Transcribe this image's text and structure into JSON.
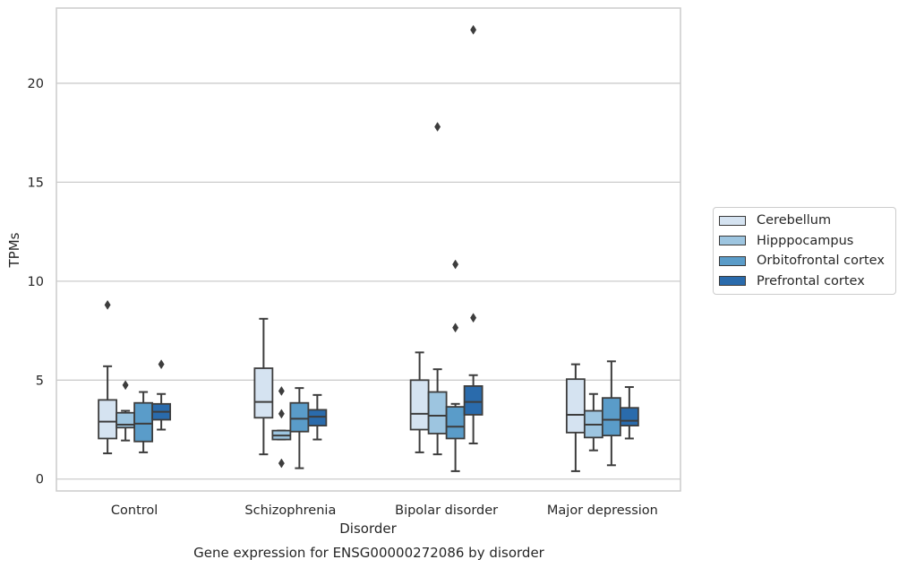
{
  "chart_data": {
    "type": "box",
    "title": "Gene expression for ENSG00000272086 by disorder",
    "xlabel": "Disorder",
    "ylabel": "TPMs",
    "ylim": [
      -0.6,
      23.8
    ],
    "yticks": [
      0,
      5,
      10,
      15,
      20
    ],
    "categories": [
      "Control",
      "Schizophrenia",
      "Bipolar disorder",
      "Major depression"
    ],
    "grid": "horizontal",
    "legend_position": "right",
    "series": [
      {
        "name": "Cerebellum",
        "color": "#d5e3f1",
        "boxes": [
          {
            "whisker_low": 1.3,
            "q1": 2.05,
            "median": 2.9,
            "q3": 4.0,
            "whisker_high": 5.7,
            "outliers": [
              8.8
            ]
          },
          {
            "whisker_low": 1.25,
            "q1": 3.1,
            "median": 3.9,
            "q3": 5.6,
            "whisker_high": 8.1,
            "outliers": []
          },
          {
            "whisker_low": 1.35,
            "q1": 2.5,
            "median": 3.3,
            "q3": 5.0,
            "whisker_high": 6.4,
            "outliers": []
          },
          {
            "whisker_low": 0.4,
            "q1": 2.35,
            "median": 3.25,
            "q3": 5.05,
            "whisker_high": 5.8,
            "outliers": []
          }
        ]
      },
      {
        "name": "Hipppocampus",
        "color": "#9dc5e0",
        "boxes": [
          {
            "whisker_low": 1.95,
            "q1": 2.6,
            "median": 2.75,
            "q3": 3.35,
            "whisker_high": 3.45,
            "outliers": [
              4.75
            ]
          },
          {
            "whisker_low": 2.0,
            "q1": 2.0,
            "median": 2.2,
            "q3": 2.45,
            "whisker_high": 2.45,
            "outliers": [
              4.45,
              3.3,
              0.8
            ]
          },
          {
            "whisker_low": 1.25,
            "q1": 2.3,
            "median": 3.2,
            "q3": 4.4,
            "whisker_high": 5.55,
            "outliers": [
              17.8
            ]
          },
          {
            "whisker_low": 1.45,
            "q1": 2.1,
            "median": 2.75,
            "q3": 3.45,
            "whisker_high": 4.3,
            "outliers": []
          }
        ]
      },
      {
        "name": "Orbitofrontal cortex",
        "color": "#5a9cc9",
        "boxes": [
          {
            "whisker_low": 1.35,
            "q1": 1.9,
            "median": 2.8,
            "q3": 3.85,
            "whisker_high": 4.4,
            "outliers": []
          },
          {
            "whisker_low": 0.55,
            "q1": 2.4,
            "median": 3.05,
            "q3": 3.85,
            "whisker_high": 4.6,
            "outliers": []
          },
          {
            "whisker_low": 0.4,
            "q1": 2.05,
            "median": 2.65,
            "q3": 3.65,
            "whisker_high": 3.8,
            "outliers": [
              10.85,
              7.65
            ]
          },
          {
            "whisker_low": 0.7,
            "q1": 2.2,
            "median": 3.0,
            "q3": 4.1,
            "whisker_high": 5.95,
            "outliers": []
          }
        ]
      },
      {
        "name": "Prefrontal cortex",
        "color": "#2a6bac",
        "boxes": [
          {
            "whisker_low": 2.5,
            "q1": 3.0,
            "median": 3.4,
            "q3": 3.8,
            "whisker_high": 4.3,
            "outliers": [
              5.8
            ]
          },
          {
            "whisker_low": 2.0,
            "q1": 2.7,
            "median": 3.15,
            "q3": 3.5,
            "whisker_high": 4.25,
            "outliers": []
          },
          {
            "whisker_low": 1.8,
            "q1": 3.25,
            "median": 3.9,
            "q3": 4.7,
            "whisker_high": 5.25,
            "outliers": [
              22.7,
              8.15
            ]
          },
          {
            "whisker_low": 2.05,
            "q1": 2.7,
            "median": 2.95,
            "q3": 3.6,
            "whisker_high": 4.65,
            "outliers": []
          }
        ]
      }
    ]
  }
}
